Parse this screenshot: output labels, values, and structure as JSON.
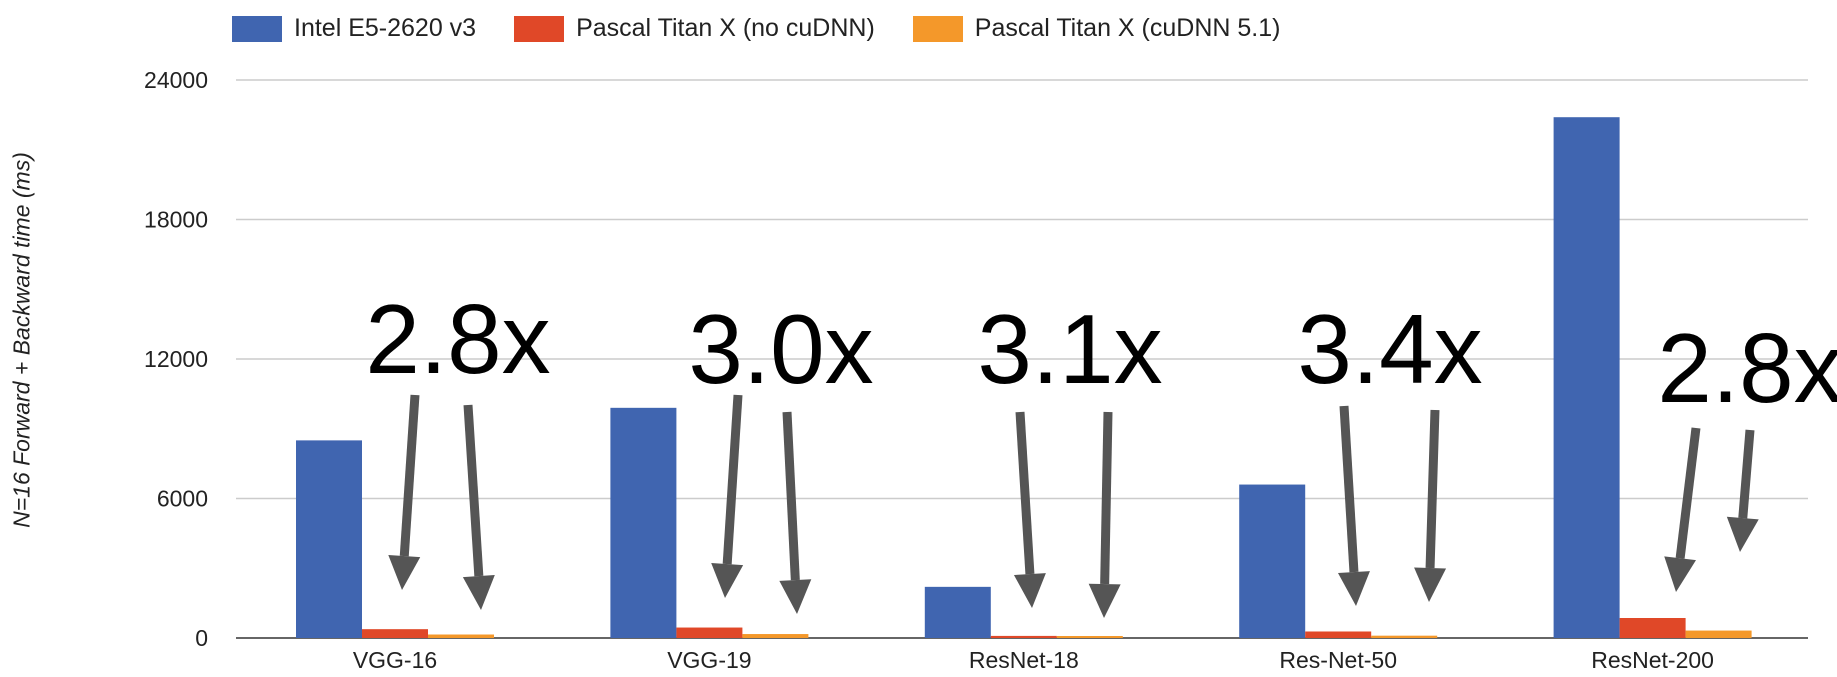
{
  "chart_data": {
    "type": "bar",
    "categories": [
      "VGG-16",
      "VGG-19",
      "ResNet-18",
      "Res-Net-50",
      "ResNet-200"
    ],
    "series": [
      {
        "name": "Intel E5-2620 v3",
        "color": "#4065b0",
        "values": [
          8500,
          9900,
          2200,
          6600,
          22400
        ]
      },
      {
        "name": "Pascal Titan X (no cuDNN)",
        "color": "#e04828",
        "values": [
          380,
          450,
          90,
          280,
          860
        ]
      },
      {
        "name": "Pascal Titan X (cuDNN 5.1)",
        "color": "#f4982a",
        "values": [
          150,
          170,
          30,
          100,
          320
        ]
      }
    ],
    "ylabel": "N=16 Forward + Backward time (ms)",
    "xlabel": "",
    "ylim": [
      0,
      24000
    ],
    "yticks": [
      0,
      6000,
      12000,
      18000,
      24000
    ],
    "ytick_labels": [
      "0",
      "6000",
      "12000",
      "18000",
      "24000"
    ],
    "grid": true,
    "legend_position": "top",
    "annotations": [
      "2.8x",
      "3.0x",
      "3.1x",
      "3.4x",
      "2.8x"
    ]
  }
}
